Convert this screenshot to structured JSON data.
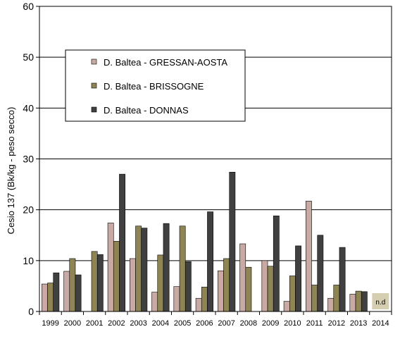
{
  "chart_data": {
    "type": "bar",
    "ylabel": "Cesio 137 (Bk/kg - peso secco)",
    "ylim": [
      0,
      60
    ],
    "yticks": [
      0,
      10,
      20,
      30,
      40,
      50,
      60
    ],
    "grid": "horizontal",
    "legend_position": "upper-left",
    "categories": [
      "1999",
      "2000",
      "2001",
      "2002",
      "2003",
      "2004",
      "2005",
      "2006",
      "2007",
      "2008",
      "2009",
      "2010",
      "2011",
      "2012",
      "2013",
      "2014"
    ],
    "series": [
      {
        "name": "D. Baltea - GRESSAN-AOSTA",
        "color": "#c9a9a3",
        "values": [
          5.4,
          7.9,
          null,
          17.4,
          10.4,
          3.8,
          4.9,
          2.6,
          8.0,
          13.3,
          10.0,
          2.0,
          21.7,
          2.6,
          3.4,
          null
        ]
      },
      {
        "name": "D. Baltea - BRISSOGNE",
        "color": "#8e8454",
        "values": [
          5.6,
          10.4,
          11.8,
          13.8,
          16.8,
          11.1,
          16.8,
          4.8,
          10.4,
          8.7,
          8.9,
          7.0,
          5.2,
          5.2,
          4.0,
          null
        ]
      },
      {
        "name": "D. Baltea - DONNAS",
        "color": "#404040",
        "values": [
          7.6,
          7.2,
          11.2,
          27.0,
          16.4,
          17.3,
          9.8,
          19.6,
          27.4,
          null,
          18.8,
          12.9,
          15.0,
          12.6,
          3.9,
          null
        ]
      }
    ],
    "annotations": [
      {
        "category": "2014",
        "text": "n.d"
      }
    ]
  }
}
